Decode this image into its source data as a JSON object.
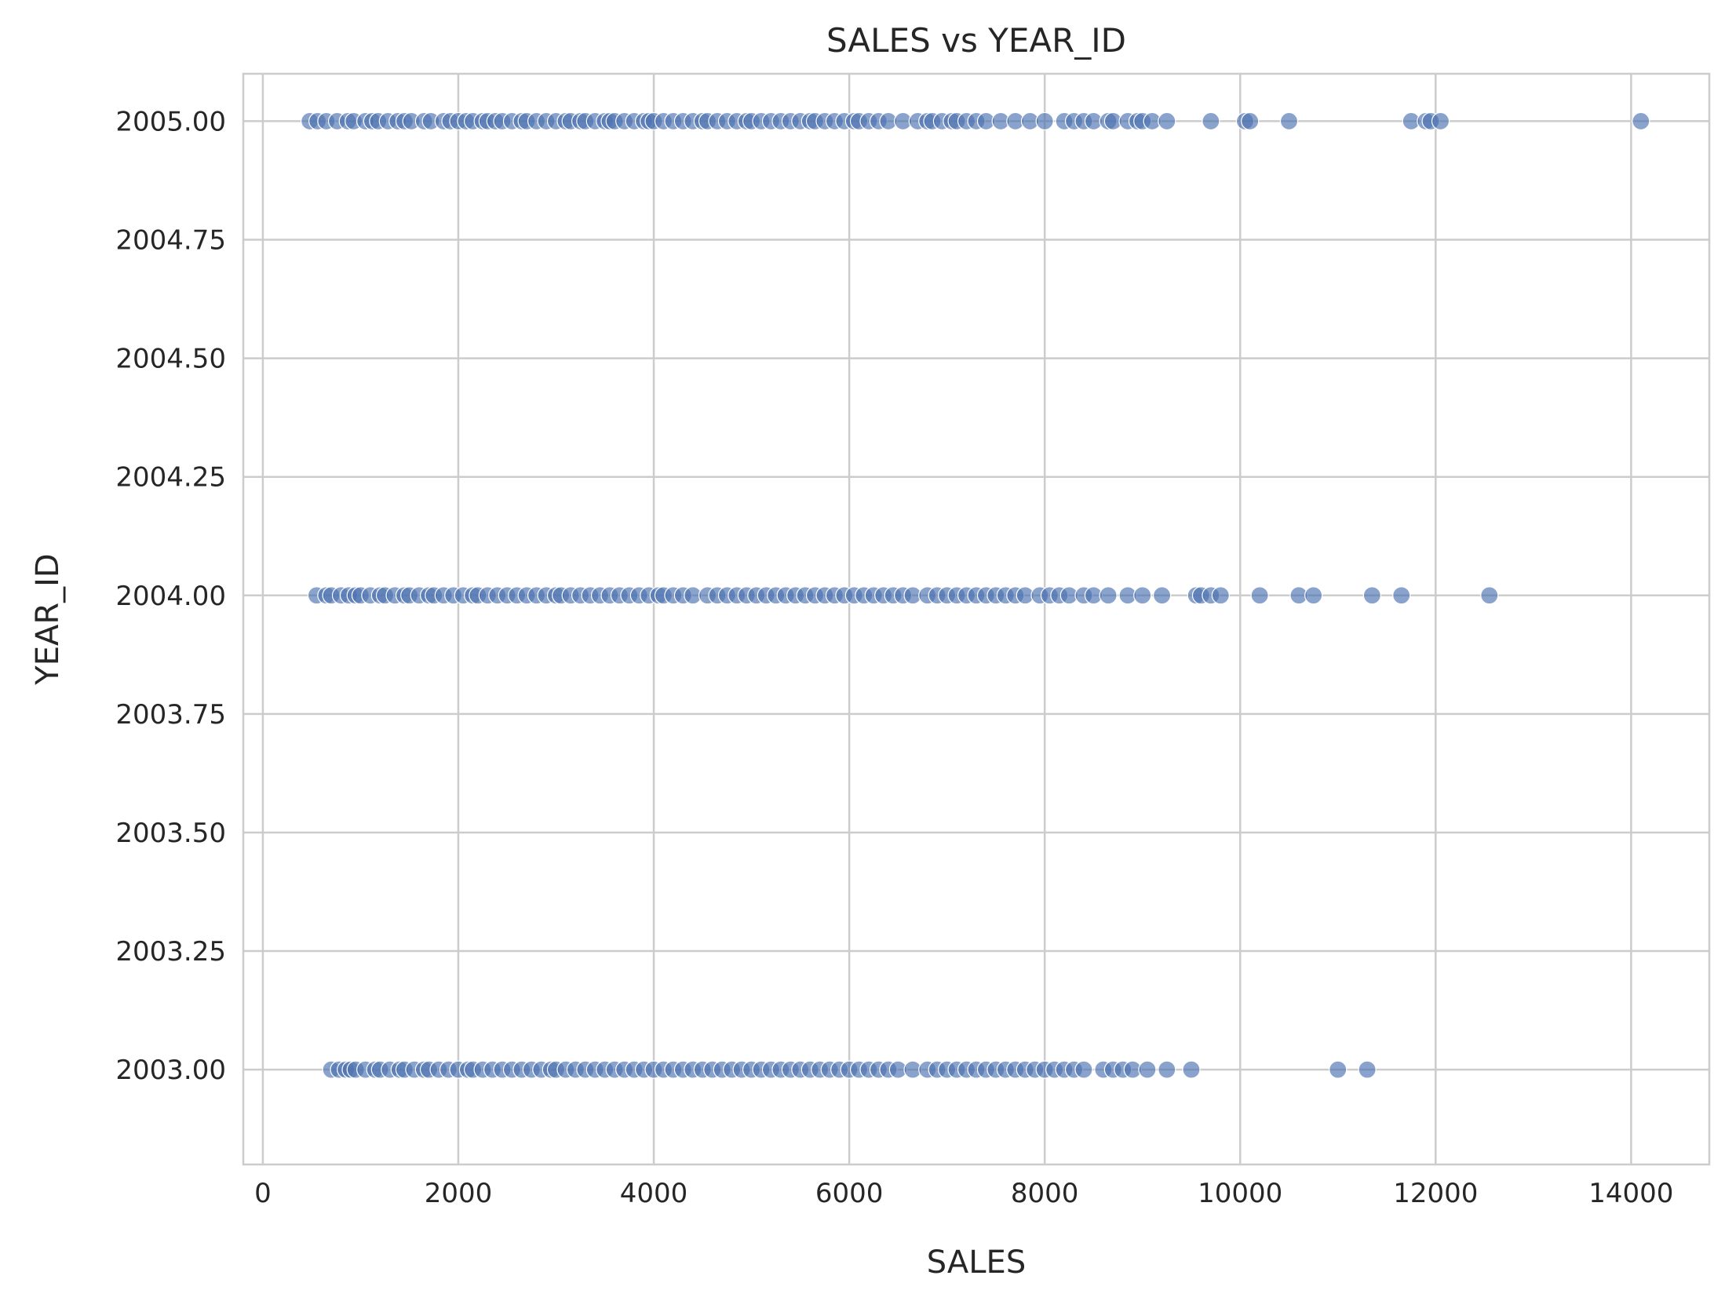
{
  "chart_data": {
    "type": "scatter",
    "title": "SALES vs YEAR_ID",
    "xlabel": "SALES",
    "ylabel": "YEAR_ID",
    "xlim": [
      -200,
      14800
    ],
    "ylim": [
      2002.8,
      2005.1
    ],
    "x_ticks": [
      0,
      2000,
      4000,
      6000,
      8000,
      10000,
      12000,
      14000
    ],
    "x_tick_labels": [
      "0",
      "2000",
      "4000",
      "6000",
      "8000",
      "10000",
      "12000",
      "14000"
    ],
    "y_ticks": [
      2003.0,
      2003.25,
      2003.5,
      2003.75,
      2004.0,
      2004.25,
      2004.5,
      2004.75,
      2005.0
    ],
    "y_tick_labels": [
      "2003.00",
      "2003.25",
      "2003.50",
      "2003.75",
      "2004.00",
      "2004.25",
      "2004.50",
      "2004.75",
      "2005.00"
    ],
    "grid": true,
    "point_color": "#4c72b0",
    "grid_color": "#cccccc",
    "series": [
      {
        "y": 2005.0,
        "x": [
          480,
          560,
          650,
          760,
          870,
          930,
          1050,
          1120,
          1180,
          1280,
          1380,
          1450,
          1520,
          1650,
          1720,
          1850,
          1920,
          2000,
          2080,
          2150,
          2250,
          2300,
          2380,
          2450,
          2550,
          2650,
          2700,
          2800,
          2900,
          3000,
          3100,
          3150,
          3250,
          3300,
          3400,
          3500,
          3550,
          3600,
          3700,
          3800,
          3900,
          3950,
          4000,
          4100,
          4200,
          4300,
          4400,
          4500,
          4550,
          4650,
          4750,
          4850,
          4950,
          5000,
          5100,
          5200,
          5300,
          5400,
          5500,
          5600,
          5650,
          5750,
          5850,
          5950,
          6050,
          6100,
          6200,
          6300,
          6400,
          6550,
          6700,
          6800,
          6850,
          6950,
          7050,
          7100,
          7200,
          7300,
          7400,
          7550,
          7700,
          7850,
          8000,
          8200,
          8300,
          8400,
          8500,
          8650,
          8700,
          8850,
          8950,
          9000,
          9100,
          9250,
          9700,
          10050,
          10100,
          10500,
          11750,
          11900,
          11950,
          12050,
          14100
        ]
      },
      {
        "y": 2004.0,
        "x": [
          550,
          650,
          700,
          800,
          880,
          950,
          1000,
          1100,
          1200,
          1250,
          1350,
          1450,
          1500,
          1600,
          1700,
          1750,
          1850,
          1950,
          2050,
          2150,
          2200,
          2300,
          2400,
          2500,
          2600,
          2700,
          2800,
          2900,
          3000,
          3050,
          3150,
          3250,
          3350,
          3450,
          3550,
          3650,
          3750,
          3850,
          3950,
          4050,
          4100,
          4200,
          4300,
          4400,
          4550,
          4650,
          4750,
          4850,
          4950,
          5050,
          5150,
          5250,
          5350,
          5450,
          5550,
          5650,
          5750,
          5850,
          5950,
          6050,
          6150,
          6250,
          6350,
          6450,
          6550,
          6650,
          6800,
          6900,
          7000,
          7100,
          7200,
          7300,
          7400,
          7500,
          7600,
          7700,
          7800,
          7950,
          8050,
          8150,
          8250,
          8400,
          8500,
          8650,
          8850,
          9000,
          9200,
          9550,
          9600,
          9700,
          9800,
          10200,
          10600,
          10750,
          11350,
          11650,
          12550
        ]
      },
      {
        "y": 2003.0,
        "x": [
          700,
          780,
          850,
          900,
          950,
          1050,
          1150,
          1200,
          1300,
          1400,
          1450,
          1550,
          1650,
          1700,
          1800,
          1900,
          2000,
          2100,
          2150,
          2250,
          2350,
          2450,
          2550,
          2650,
          2750,
          2850,
          2950,
          3000,
          3100,
          3200,
          3300,
          3400,
          3500,
          3600,
          3700,
          3800,
          3900,
          4000,
          4100,
          4200,
          4300,
          4400,
          4500,
          4600,
          4700,
          4800,
          4900,
          5000,
          5100,
          5200,
          5300,
          5400,
          5500,
          5600,
          5700,
          5800,
          5900,
          6000,
          6100,
          6200,
          6300,
          6400,
          6500,
          6650,
          6800,
          6900,
          7000,
          7100,
          7200,
          7300,
          7400,
          7500,
          7600,
          7700,
          7800,
          7900,
          8000,
          8100,
          8200,
          8300,
          8400,
          8600,
          8700,
          8800,
          8900,
          9050,
          9250,
          9500,
          11000,
          11300
        ]
      }
    ]
  }
}
